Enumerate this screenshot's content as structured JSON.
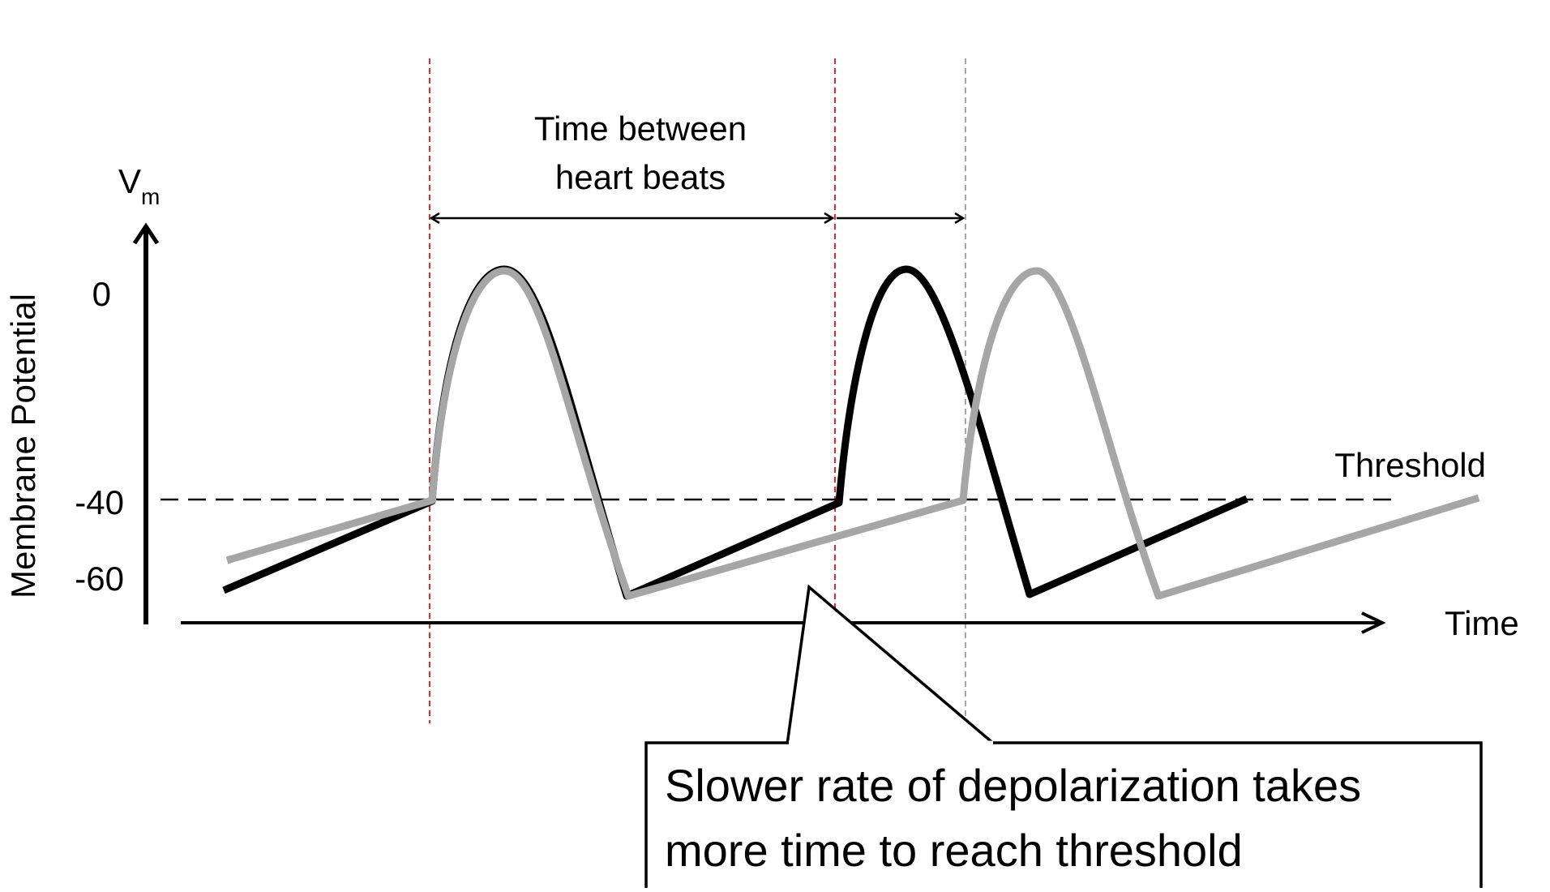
{
  "y_axis": {
    "symbol": "V",
    "symbol_subscript": "m",
    "label": "Membrane Potential",
    "ticks": [
      "0",
      "-40",
      "-60"
    ]
  },
  "x_axis": {
    "label": "Time"
  },
  "threshold_label": "Threshold",
  "interval_label": {
    "line1": "Time between",
    "line2": "heart beats"
  },
  "callout": {
    "line1": "Slower rate of depolarization takes",
    "line2": "more time to reach threshold"
  },
  "colors": {
    "fast_trace": "#000000",
    "slow_trace": "#a6a6a6",
    "beat_marker_fast": "#e8262a",
    "beat_marker_slow": "#a6a6a6",
    "axis": "#000000"
  }
}
